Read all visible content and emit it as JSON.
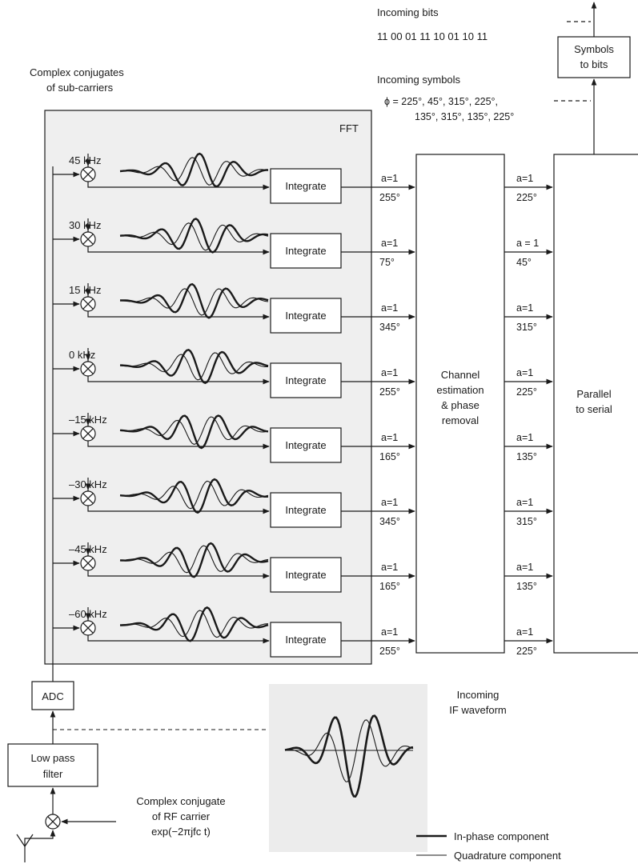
{
  "top": {
    "incoming_bits_label": "Incoming bits",
    "incoming_bits_value": "11 00 01 11 10 01 10 11",
    "incoming_symbols_label": "Incoming symbols",
    "phi_line1": "ϕ = 225°, 45°, 315°, 225°,",
    "phi_line2": "135°, 315°, 135°, 225°"
  },
  "left_title": {
    "line1": "Complex conjugates",
    "line2": "of sub-carriers"
  },
  "fft_label": "FFT",
  "integrate_label": "Integrate",
  "subcarriers": [
    {
      "freq": "45 kHz",
      "in_amp": "a=1",
      "in_phase": "255°",
      "out_amp": "a=1",
      "out_phase": "225°"
    },
    {
      "freq": "30 kHz",
      "in_amp": "a=1",
      "in_phase": "75°",
      "out_amp": "a = 1",
      "out_phase": "45°"
    },
    {
      "freq": "15 kHz",
      "in_amp": "a=1",
      "in_phase": "345°",
      "out_amp": "a=1",
      "out_phase": "315°"
    },
    {
      "freq": "0 kHz",
      "in_amp": "a=1",
      "in_phase": "255°",
      "out_amp": "a=1",
      "out_phase": "225°"
    },
    {
      "freq": "–15 kHz",
      "in_amp": "a=1",
      "in_phase": "165°",
      "out_amp": "a=1",
      "out_phase": "135°"
    },
    {
      "freq": "–30 kHz",
      "in_amp": "a=1",
      "in_phase": "345°",
      "out_amp": "a=1",
      "out_phase": "315°"
    },
    {
      "freq": "–45 kHz",
      "in_amp": "a=1",
      "in_phase": "165°",
      "out_amp": "a=1",
      "out_phase": "135°"
    },
    {
      "freq": "–60 kHz",
      "in_amp": "a=1",
      "in_phase": "255°",
      "out_amp": "a=1",
      "out_phase": "225°"
    }
  ],
  "channel_block": {
    "line1": "Channel",
    "line2": "estimation",
    "line3": "& phase",
    "line4": "removal"
  },
  "parallel_block": {
    "line1": "Parallel",
    "line2": "to serial"
  },
  "symbols_block": {
    "line1": "Symbols",
    "line2": "to bits"
  },
  "adc_label": "ADC",
  "lpf": {
    "line1": "Low pass",
    "line2": "filter"
  },
  "rf_carrier": {
    "line1": "Complex conjugate",
    "line2": "of RF carrier",
    "line3": "exp(−2πjfᴄ t)"
  },
  "if_waveform": {
    "line1": "Incoming",
    "line2": "IF waveform"
  },
  "legend": {
    "in_phase": "In-phase component",
    "quadrature": "Quadrature component"
  }
}
